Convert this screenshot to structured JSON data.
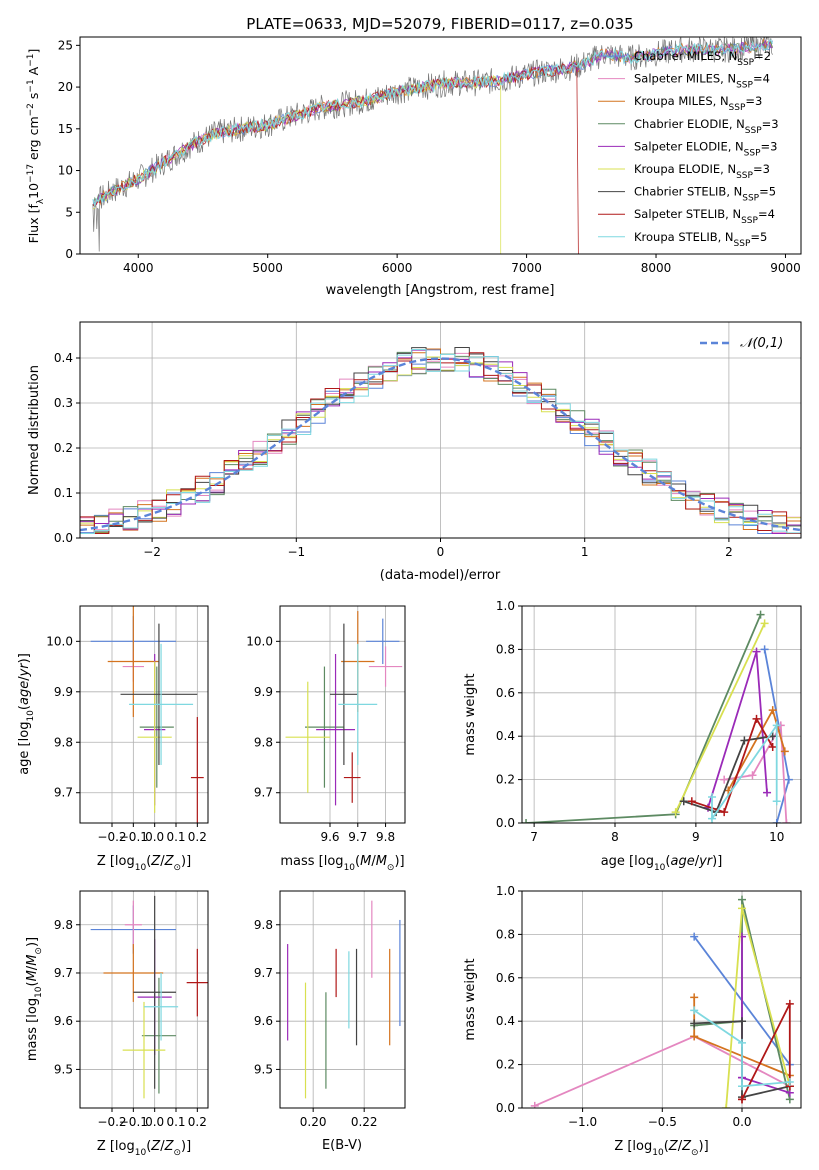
{
  "figure_title": "PLATE=0633, MJD=52079, FIBERID=0117, z=0.035",
  "colors": {
    "Chabrier MILES": "#5b84d8",
    "Salpeter MILES": "#e487c0",
    "Kroupa MILES": "#d4731f",
    "Chabrier ELODIE": "#5d8a62",
    "Salpeter ELODIE": "#9a2ab8",
    "Kroupa ELODIE": "#d8e050",
    "Chabrier STELIB": "#444444",
    "Salpeter STELIB": "#b01818",
    "Kroupa STELIB": "#7fd8e0"
  },
  "legend_labels": [
    {
      "key": "Chabrier MILES",
      "text": "Chabrier MILES, N",
      "sub": "SSP",
      "tail": "=2"
    },
    {
      "key": "Salpeter MILES",
      "text": "Salpeter MILES, N",
      "sub": "SSP",
      "tail": "=4"
    },
    {
      "key": "Kroupa MILES",
      "text": "Kroupa MILES, N",
      "sub": "SSP",
      "tail": "=3"
    },
    {
      "key": "Chabrier ELODIE",
      "text": "Chabrier ELODIE, N",
      "sub": "SSP",
      "tail": "=3"
    },
    {
      "key": "Salpeter ELODIE",
      "text": "Salpeter ELODIE, N",
      "sub": "SSP",
      "tail": "=3"
    },
    {
      "key": "Kroupa ELODIE",
      "text": "Kroupa ELODIE, N",
      "sub": "SSP",
      "tail": "=3"
    },
    {
      "key": "Chabrier STELIB",
      "text": "Chabrier STELIB, N",
      "sub": "SSP",
      "tail": "=5"
    },
    {
      "key": "Salpeter STELIB",
      "text": "Salpeter STELIB, N",
      "sub": "SSP",
      "tail": "=4"
    },
    {
      "key": "Kroupa STELIB",
      "text": "Kroupa STELIB, N",
      "sub": "SSP",
      "tail": "=5"
    }
  ],
  "chart_data": [
    {
      "id": "spectrum",
      "type": "line",
      "xlabel": "wavelength [Angstrom, rest frame]",
      "ylabel": "Flux [f_λ10^-17 erg cm^-2 s^-1 A^-1]",
      "xlim": [
        3550,
        9120
      ],
      "ylim": [
        0,
        26
      ],
      "xticks": [
        4000,
        5000,
        6000,
        7000,
        8000,
        9000
      ],
      "yticks": [
        0,
        5,
        10,
        15,
        20,
        25
      ],
      "continuum": [
        [
          3650,
          6
        ],
        [
          3800,
          7.5
        ],
        [
          4000,
          9
        ],
        [
          4200,
          11
        ],
        [
          4400,
          13
        ],
        [
          4600,
          14.5
        ],
        [
          4800,
          15
        ],
        [
          5000,
          15.5
        ],
        [
          5200,
          16.5
        ],
        [
          5400,
          17.5
        ],
        [
          5600,
          18
        ],
        [
          5800,
          18.5
        ],
        [
          6000,
          19.5
        ],
        [
          6200,
          20
        ],
        [
          6400,
          20.5
        ],
        [
          6600,
          20.5
        ],
        [
          6800,
          20.8
        ],
        [
          7000,
          21.5
        ],
        [
          7200,
          22
        ],
        [
          7400,
          22.5
        ],
        [
          7600,
          24
        ],
        [
          7800,
          23.5
        ],
        [
          8000,
          24
        ],
        [
          8200,
          24.5
        ],
        [
          8400,
          24.5
        ],
        [
          8600,
          24.5
        ],
        [
          8800,
          25
        ]
      ],
      "dropouts": [
        {
          "series": "Kroupa ELODIE",
          "x": 6800
        },
        {
          "series": "Salpeter STELIB",
          "x": 7400
        }
      ],
      "grid": false,
      "legend": "right"
    },
    {
      "id": "residuals",
      "type": "histogram",
      "xlabel": "(data-model)/error",
      "ylabel": "Normed distribution",
      "xlim": [
        -2.5,
        2.5
      ],
      "ylim": [
        0,
        0.48
      ],
      "xticks": [
        -2,
        -1,
        0,
        1,
        2
      ],
      "yticks": [
        0.0,
        0.1,
        0.2,
        0.3,
        0.4
      ],
      "reference_curve": "𝒩(0,1)",
      "bin_width": 0.1,
      "grid": true,
      "legend": "top-right"
    },
    {
      "id": "age_vs_Z",
      "type": "errorbar",
      "xlabel": "Z [log10(Z/Z⊙)]",
      "ylabel": "age  [log10(age/yr)]",
      "xlim": [
        -0.35,
        0.25
      ],
      "ylim": [
        9.64,
        10.07
      ],
      "xticks": [
        -0.2,
        -0.1,
        0.0,
        0.1,
        0.2
      ],
      "yticks": [
        9.7,
        9.8,
        9.9,
        10.0
      ],
      "points": [
        {
          "series": "Chabrier MILES",
          "x": -0.1,
          "y": 10.0,
          "xe": 0.2,
          "ye": 0.05
        },
        {
          "series": "Salpeter MILES",
          "x": -0.1,
          "y": 9.95,
          "xe": 0.05,
          "ye": 0.03
        },
        {
          "series": "Kroupa MILES",
          "x": -0.1,
          "y": 9.96,
          "xe": 0.12,
          "ye": 0.11
        },
        {
          "series": "Chabrier ELODIE",
          "x": 0.01,
          "y": 9.83,
          "xe": 0.08,
          "ye": 0.12
        },
        {
          "series": "Salpeter ELODIE",
          "x": 0.0,
          "y": 9.825,
          "xe": 0.05,
          "ye": 0.15
        },
        {
          "series": "Kroupa ELODIE",
          "x": 0.0,
          "y": 9.81,
          "xe": 0.08,
          "ye": 0.15
        },
        {
          "series": "Chabrier STELIB",
          "x": 0.02,
          "y": 9.895,
          "xe": 0.18,
          "ye": 0.14
        },
        {
          "series": "Salpeter STELIB",
          "x": 0.2,
          "y": 9.73,
          "xe": 0.03,
          "ye": 0.12
        },
        {
          "series": "Kroupa STELIB",
          "x": 0.03,
          "y": 9.875,
          "xe": 0.15,
          "ye": 0.12
        }
      ],
      "grid": true
    },
    {
      "id": "age_vs_mass",
      "type": "errorbar",
      "xlabel": "mass [log10(M/M⊙)]",
      "ylabel": "",
      "xlim": [
        9.42,
        9.87
      ],
      "ylim": [
        9.64,
        10.07
      ],
      "xticks": [
        9.6,
        9.7,
        9.8
      ],
      "yticks": [
        9.7,
        9.8,
        9.9,
        10.0
      ],
      "points": [
        {
          "series": "Chabrier MILES",
          "x": 9.79,
          "y": 10.0,
          "xe": 0.06,
          "ye": 0.045
        },
        {
          "series": "Salpeter MILES",
          "x": 9.8,
          "y": 9.95,
          "xe": 0.06,
          "ye": 0.04
        },
        {
          "series": "Kroupa MILES",
          "x": 9.7,
          "y": 9.96,
          "xe": 0.06,
          "ye": 0.1
        },
        {
          "series": "Chabrier ELODIE",
          "x": 9.58,
          "y": 9.83,
          "xe": 0.07,
          "ye": 0.12
        },
        {
          "series": "Salpeter ELODIE",
          "x": 9.62,
          "y": 9.825,
          "xe": 0.07,
          "ye": 0.15
        },
        {
          "series": "Kroupa ELODIE",
          "x": 9.52,
          "y": 9.81,
          "xe": 0.08,
          "ye": 0.11
        },
        {
          "series": "Chabrier STELIB",
          "x": 9.65,
          "y": 9.895,
          "xe": 0.05,
          "ye": 0.14
        },
        {
          "series": "Salpeter STELIB",
          "x": 9.68,
          "y": 9.73,
          "xe": 0.03,
          "ye": 0.05
        },
        {
          "series": "Kroupa STELIB",
          "x": 9.7,
          "y": 9.875,
          "xe": 0.07,
          "ye": 0.12
        }
      ],
      "grid": true
    },
    {
      "id": "weight_vs_age",
      "type": "line",
      "xlabel": "age  [log10(age/yr)]",
      "ylabel": "mass weight",
      "xlim": [
        6.85,
        10.3
      ],
      "ylim": [
        0,
        1.0
      ],
      "xticks": [
        7,
        8,
        9,
        10
      ],
      "yticks": [
        0.0,
        0.2,
        0.4,
        0.6,
        0.8,
        1.0
      ],
      "series": [
        {
          "series": "Chabrier MILES",
          "x": [
            9.85,
            10.15,
            10.0
          ],
          "y": [
            0.8,
            0.2,
            0.0
          ]
        },
        {
          "series": "Salpeter MILES",
          "x": [
            9.35,
            9.7,
            10.05,
            10.12
          ],
          "y": [
            0.2,
            0.22,
            0.45,
            0.0
          ]
        },
        {
          "series": "Kroupa MILES",
          "x": [
            9.4,
            9.95,
            10.1
          ],
          "y": [
            0.15,
            0.52,
            0.33
          ]
        },
        {
          "series": "Chabrier ELODIE",
          "x": [
            6.9,
            8.75,
            9.8
          ],
          "y": [
            0.0,
            0.04,
            0.96
          ]
        },
        {
          "series": "Salpeter ELODIE",
          "x": [
            9.15,
            9.75,
            9.88
          ],
          "y": [
            0.07,
            0.79,
            0.14
          ]
        },
        {
          "series": "Kroupa ELODIE",
          "x": [
            8.75,
            9.85
          ],
          "y": [
            0.05,
            0.92
          ]
        },
        {
          "series": "Chabrier STELIB",
          "x": [
            8.85,
            9.25,
            9.6,
            9.95
          ],
          "y": [
            0.1,
            0.05,
            0.38,
            0.4
          ]
        },
        {
          "series": "Salpeter STELIB",
          "x": [
            8.95,
            9.35,
            9.75,
            9.95
          ],
          "y": [
            0.1,
            0.05,
            0.48,
            0.35
          ]
        },
        {
          "series": "Kroupa STELIB",
          "x": [
            9.2,
            9.2,
            10.0,
            10.0
          ],
          "y": [
            0.12,
            0.02,
            0.45,
            0.1
          ]
        }
      ],
      "grid": true
    },
    {
      "id": "mass_vs_Z",
      "type": "errorbar",
      "xlabel": "Z [log10(Z/Z⊙)]",
      "ylabel": "mass [log10(M/M⊙)]",
      "xlim": [
        -0.35,
        0.25
      ],
      "ylim": [
        9.42,
        9.87
      ],
      "xticks": [
        -0.2,
        -0.1,
        0.0,
        0.1,
        0.2
      ],
      "yticks": [
        9.5,
        9.6,
        9.7,
        9.8
      ],
      "points": [
        {
          "series": "Chabrier MILES",
          "x": -0.1,
          "y": 9.79,
          "xe": 0.2,
          "ye": 0.05
        },
        {
          "series": "Salpeter MILES",
          "x": -0.1,
          "y": 9.8,
          "xe": 0.04,
          "ye": 0.05
        },
        {
          "series": "Kroupa MILES",
          "x": -0.1,
          "y": 9.7,
          "xe": 0.14,
          "ye": 0.06
        },
        {
          "series": "Chabrier ELODIE",
          "x": 0.02,
          "y": 9.57,
          "xe": 0.08,
          "ye": 0.12
        },
        {
          "series": "Salpeter ELODIE",
          "x": 0.0,
          "y": 9.65,
          "xe": 0.08,
          "ye": 0.12
        },
        {
          "series": "Kroupa ELODIE",
          "x": -0.05,
          "y": 9.54,
          "xe": 0.1,
          "ye": 0.1
        },
        {
          "series": "Chabrier STELIB",
          "x": 0.0,
          "y": 9.66,
          "xe": 0.1,
          "ye": 0.2
        },
        {
          "series": "Salpeter STELIB",
          "x": 0.2,
          "y": 9.68,
          "xe": 0.05,
          "ye": 0.07
        },
        {
          "series": "Kroupa STELIB",
          "x": 0.03,
          "y": 9.63,
          "xe": 0.08,
          "ye": 0.07
        }
      ],
      "grid": true
    },
    {
      "id": "mass_vs_ebv",
      "type": "errorbar",
      "xlabel": "E(B-V)",
      "ylabel": "",
      "xlim": [
        0.187,
        0.236
      ],
      "ylim": [
        9.42,
        9.87
      ],
      "xticks": [
        0.2,
        0.22
      ],
      "yticks": [
        9.5,
        9.6,
        9.7,
        9.8
      ],
      "points": [
        {
          "series": "Chabrier MILES",
          "x": 0.234,
          "y": 9.7,
          "xe": 0,
          "ye": 0.11
        },
        {
          "series": "Salpeter MILES",
          "x": 0.223,
          "y": 9.77,
          "xe": 0,
          "ye": 0.08
        },
        {
          "series": "Kroupa MILES",
          "x": 0.23,
          "y": 9.65,
          "xe": 0,
          "ye": 0.1
        },
        {
          "series": "Chabrier ELODIE",
          "x": 0.205,
          "y": 9.56,
          "xe": 0,
          "ye": 0.1
        },
        {
          "series": "Salpeter ELODIE",
          "x": 0.19,
          "y": 9.66,
          "xe": 0,
          "ye": 0.1
        },
        {
          "series": "Kroupa ELODIE",
          "x": 0.197,
          "y": 9.56,
          "xe": 0,
          "ye": 0.12
        },
        {
          "series": "Chabrier STELIB",
          "x": 0.217,
          "y": 9.65,
          "xe": 0,
          "ye": 0.1
        },
        {
          "series": "Salpeter STELIB",
          "x": 0.209,
          "y": 9.7,
          "xe": 0,
          "ye": 0.05
        },
        {
          "series": "Kroupa STELIB",
          "x": 0.214,
          "y": 9.665,
          "xe": 0,
          "ye": 0.08
        }
      ],
      "grid": true
    },
    {
      "id": "weight_vs_Z",
      "type": "line",
      "xlabel": "Z [log10(Z/Z⊙)]",
      "ylabel": "mass weight",
      "xlim": [
        -1.38,
        0.37
      ],
      "ylim": [
        0,
        1.0
      ],
      "xticks": [
        -1.0,
        -0.5,
        0.0
      ],
      "yticks": [
        0.0,
        0.2,
        0.4,
        0.6,
        0.8,
        1.0
      ],
      "series": [
        {
          "series": "Chabrier MILES",
          "x": [
            -0.3,
            0.3
          ],
          "y": [
            0.79,
            0.2
          ]
        },
        {
          "series": "Salpeter MILES",
          "x": [
            -1.3,
            -0.3,
            0.3
          ],
          "y": [
            0.01,
            0.33,
            0.1
          ]
        },
        {
          "series": "Kroupa MILES",
          "x": [
            -0.3,
            -0.3,
            0.3
          ],
          "y": [
            0.51,
            0.33,
            0.15
          ]
        },
        {
          "series": "Chabrier ELODIE",
          "x": [
            -0.3,
            0.0,
            0.0,
            0.3
          ],
          "y": [
            0.38,
            0.4,
            0.96,
            0.04
          ]
        },
        {
          "series": "Salpeter ELODIE",
          "x": [
            0.0,
            0.0,
            0.0,
            0.3
          ],
          "y": [
            0.79,
            0.14,
            0.14,
            0.07
          ]
        },
        {
          "series": "Kroupa ELODIE",
          "x": [
            -0.1,
            0.0,
            0.3
          ],
          "y": [
            0.0,
            0.92,
            0.1
          ]
        },
        {
          "series": "Chabrier STELIB",
          "x": [
            -0.3,
            0.0,
            0.0,
            0.3
          ],
          "y": [
            0.39,
            0.4,
            0.05,
            0.1
          ]
        },
        {
          "series": "Salpeter STELIB",
          "x": [
            0.0,
            0.0,
            0.3,
            0.3
          ],
          "y": [
            0.04,
            0.04,
            0.48,
            0.1
          ]
        },
        {
          "series": "Kroupa STELIB",
          "x": [
            -0.3,
            0.0,
            0.0,
            0.3
          ],
          "y": [
            0.45,
            0.3,
            0.1,
            0.12
          ]
        }
      ],
      "grid": true
    }
  ]
}
